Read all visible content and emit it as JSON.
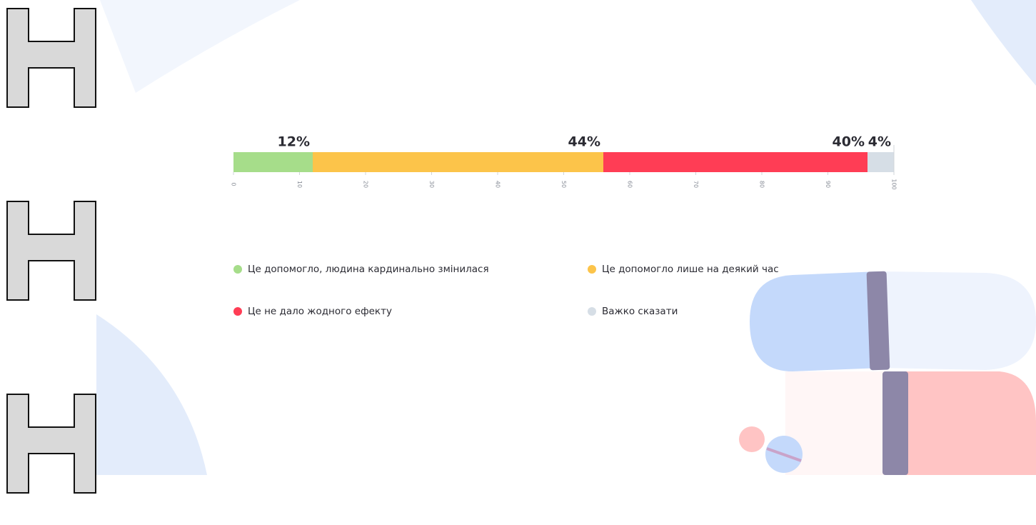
{
  "chart_data": {
    "type": "bar",
    "orientation": "horizontal",
    "stacked": true,
    "categories": [
      null
    ],
    "series": [
      {
        "name": "Це допомогло, людина кардинально змінилася",
        "color": "#a6dd8a",
        "values": [
          12
        ],
        "value_labels": [
          "12%"
        ]
      },
      {
        "name": "Це допомогло лише на деякий час",
        "color": "#fcc44a",
        "values": [
          44
        ],
        "value_labels": [
          "44%"
        ]
      },
      {
        "name": "Це не дало жодного ефекту",
        "color": "#ff3d55",
        "values": [
          40
        ],
        "value_labels": [
          "40%"
        ]
      },
      {
        "name": "Важко сказати",
        "color": "#d6dee6",
        "values": [
          4
        ],
        "value_labels": [
          "4%"
        ]
      }
    ],
    "xlim": [
      0,
      100
    ],
    "xticks": [
      0,
      10,
      20,
      30,
      40,
      50,
      60,
      70,
      80,
      90,
      100
    ]
  }
}
